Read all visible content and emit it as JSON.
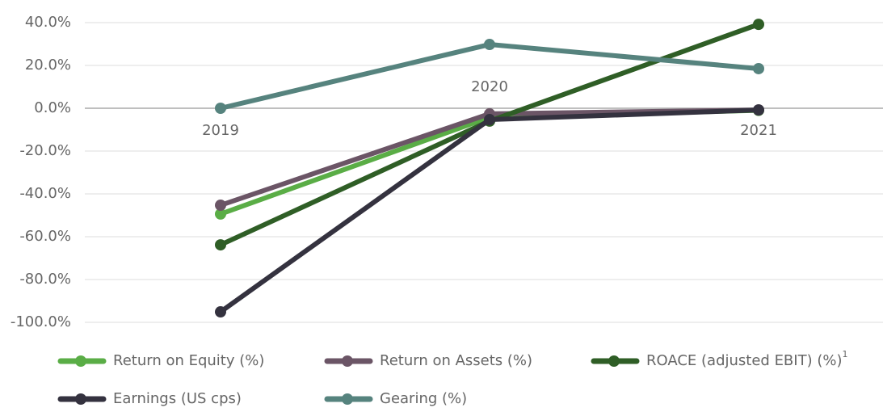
{
  "chart_data": {
    "type": "line",
    "categories": [
      "2019",
      "2020",
      "2021"
    ],
    "series": [
      {
        "name": "Return on Equity (%)",
        "color": "#5aad46",
        "values": [
          -49.4,
          -4.2,
          -1.0
        ]
      },
      {
        "name": "Return on Assets (%)",
        "color": "#6b5566",
        "values": [
          -45.3,
          -2.6,
          -0.8
        ]
      },
      {
        "name": "ROACE (adjusted EBIT) (%)",
        "footnote_marker": "1",
        "color": "#2f5e26",
        "values": [
          -63.8,
          -6.0,
          39.2
        ]
      },
      {
        "name": "Earnings (US cps)",
        "color": "#34323f",
        "values": [
          -95.1,
          -5.3,
          -0.8
        ]
      },
      {
        "name": "Gearing (%)",
        "color": "#56837e",
        "values": [
          0,
          29.8,
          18.5
        ]
      }
    ],
    "ylim": [
      -100,
      40
    ],
    "yticks": [
      {
        "value": 40,
        "label": "40.0%"
      },
      {
        "value": 20,
        "label": "20.0%"
      },
      {
        "value": 0,
        "label": "0.0%"
      },
      {
        "value": -20,
        "label": "-20.0%"
      },
      {
        "value": -40,
        "label": "-40.0%"
      },
      {
        "value": -60,
        "label": "-60.0%"
      },
      {
        "value": -80,
        "label": "-80.0%"
      },
      {
        "value": -100,
        "label": "-100.0%"
      }
    ],
    "grid": true
  }
}
